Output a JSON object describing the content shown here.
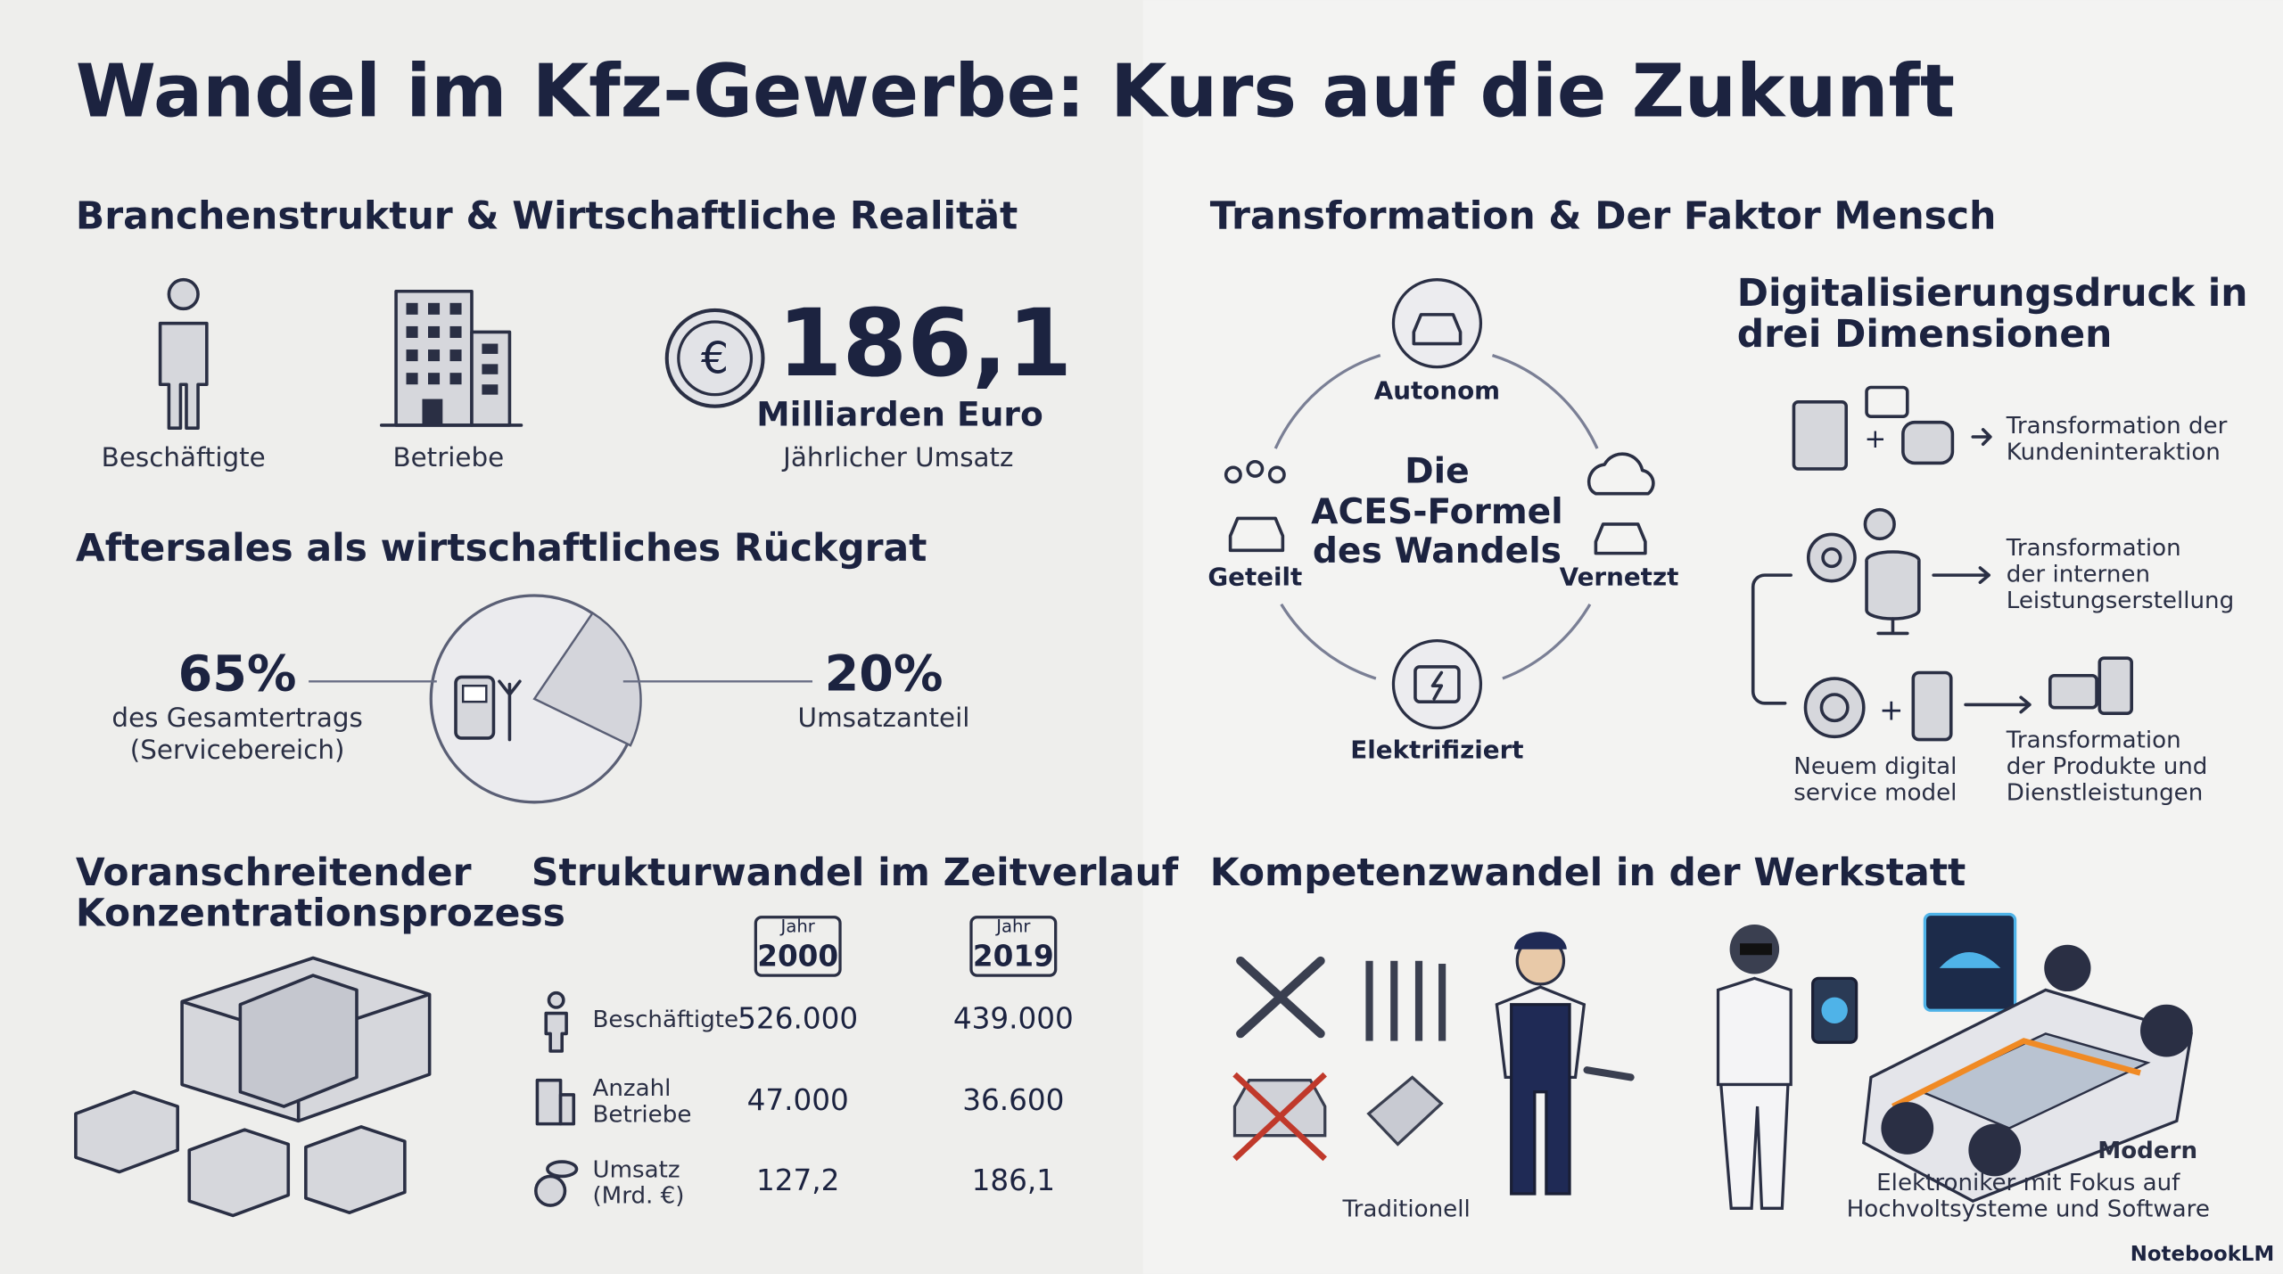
{
  "title": "Wandel im Kfz-Gewerbe: Kurs auf die Zukunft",
  "branchenstruktur": {
    "heading": "Branchenstruktur & Wirtschaftliche Realität",
    "items": [
      "Beschäftigte",
      "Betriebe"
    ],
    "revenue": {
      "value": "186,1",
      "unit": "Milliarden Euro",
      "label": "Jährlicher Umsatz"
    }
  },
  "aftersales": {
    "heading": "Aftersales als wirtschaftliches Rückgrat",
    "left": {
      "value": "65%",
      "lines": [
        "des Gesamtertrags",
        "(Servicebereich)"
      ]
    },
    "right": {
      "value": "20%",
      "label": "Umsatzanteil"
    }
  },
  "konzentration": {
    "heading_lines": [
      "Voranschreitender",
      "Konzentrationsprozess"
    ]
  },
  "strukturwandel": {
    "heading": "Strukturwandel im Zeitverlauf",
    "columns": [
      {
        "prefix": "Jahr",
        "year": "2000"
      },
      {
        "prefix": "Jahr",
        "year": "2019"
      }
    ],
    "rows": [
      {
        "label_lines": [
          "Beschäftigte"
        ],
        "values": [
          "526.000",
          "439.000"
        ]
      },
      {
        "label_lines": [
          "Anzahl",
          "Betriebe"
        ],
        "values": [
          "47.000",
          "36.600"
        ]
      },
      {
        "label_lines": [
          "Umsatz",
          "(Mrd. €)"
        ],
        "values": [
          "127,2",
          "186,1"
        ]
      }
    ]
  },
  "transformation": {
    "heading": "Transformation & Der Faktor Mensch",
    "aces": {
      "center_lines": [
        "Die",
        "ACES-Formel",
        "des Wandels"
      ],
      "labels": [
        "Autonom",
        "Geteilt",
        "Vernetzt",
        "Elektrifiziert"
      ]
    }
  },
  "digitalisierung": {
    "heading_lines": [
      "Digitalisierungsdruck in",
      "drei Dimensionen"
    ],
    "dimensions": [
      {
        "lines": [
          "Transformation der",
          "Kundeninteraktion"
        ]
      },
      {
        "lines": [
          "Transformation",
          "der internen",
          "Leistungserstellung"
        ]
      },
      {
        "lines": [
          "Transformation",
          "der Produkte und",
          "Dienstleistungen"
        ]
      }
    ],
    "service_model_lines": [
      "Neuem digital",
      "service model"
    ]
  },
  "kompetenzwandel": {
    "heading": "Kompetenzwandel in der Werkstatt",
    "traditional": "Traditionell",
    "modern": {
      "title": "Modern",
      "lines": [
        "Elektroniker mit Fokus auf",
        "Hochvoltsysteme und Software"
      ]
    }
  },
  "footer": {
    "brand": "NotebookLM"
  }
}
